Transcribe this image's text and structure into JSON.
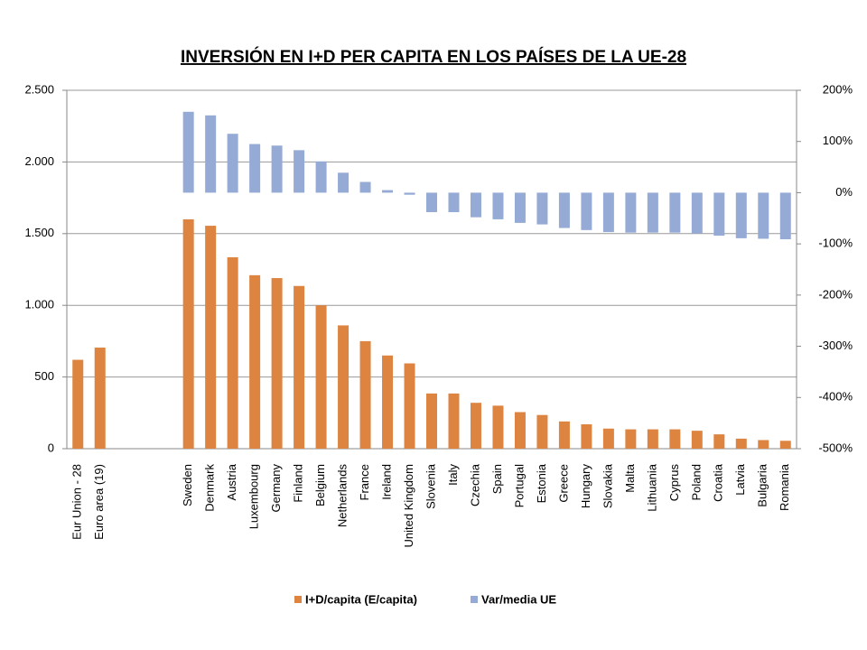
{
  "chart_data": {
    "type": "bar",
    "title": "INVERSIÓN EN I+D PER CAPITA EN LOS PAÍSES DE LA UE-28",
    "categories": [
      "Eur Union - 28",
      "Euro area (19)",
      null,
      null,
      null,
      "Sweden",
      "Denmark",
      "Austria",
      "Luxembourg",
      "Germany",
      "Finland",
      "Belgium",
      "Netherlands",
      "France",
      "Ireland",
      "United Kingdom",
      "Slovenia",
      "Italy",
      "Czechia",
      "Spain",
      "Portugal",
      "Estonia",
      "Greece",
      "Hungary",
      "Slovakia",
      "Malta",
      "Lithuania",
      "Cyprus",
      "Poland",
      "Croatia",
      "Latvia",
      "Bulgaria",
      "Romania"
    ],
    "series": [
      {
        "name": "I+D/capita (E/capita)",
        "color": "#dd8441",
        "values": [
          620,
          705,
          null,
          null,
          null,
          1600,
          1555,
          1335,
          1210,
          1190,
          1135,
          1000,
          860,
          750,
          650,
          595,
          385,
          385,
          320,
          300,
          255,
          235,
          190,
          170,
          140,
          135,
          135,
          135,
          125,
          100,
          70,
          60,
          55
        ]
      },
      {
        "name": "Var/media UE",
        "color": "#95abd5",
        "axis": "y2",
        "values": [
          null,
          null,
          null,
          null,
          null,
          158,
          151,
          115,
          95,
          92,
          83,
          61,
          39,
          21,
          5,
          -4,
          -38,
          -38,
          -48,
          -52,
          -59,
          -62,
          -69,
          -73,
          -77,
          -78,
          -78,
          -78,
          -80,
          -84,
          -89,
          -90,
          -91
        ]
      }
    ],
    "ylim": [
      0,
      2500
    ],
    "yticks": [
      0,
      500,
      {
        "value": 1000,
        "label": "1.000"
      },
      {
        "value": 1500,
        "label": "1.500"
      },
      {
        "value": 2000,
        "label": "2.000"
      },
      {
        "value": 2500,
        "label": "2.500"
      }
    ],
    "y2lim": [
      -500,
      200
    ],
    "y2ticks": [
      {
        "value": -500,
        "label": "-500%"
      },
      {
        "value": -400,
        "label": "-400%"
      },
      {
        "value": -300,
        "label": "-300%"
      },
      {
        "value": -200,
        "label": "-200%"
      },
      {
        "value": -100,
        "label": "-100%"
      },
      {
        "value": 0,
        "label": "0%"
      },
      {
        "value": 100,
        "label": "100%"
      },
      {
        "value": 200,
        "label": "200%"
      }
    ],
    "grid": true,
    "legend": "bottom"
  }
}
